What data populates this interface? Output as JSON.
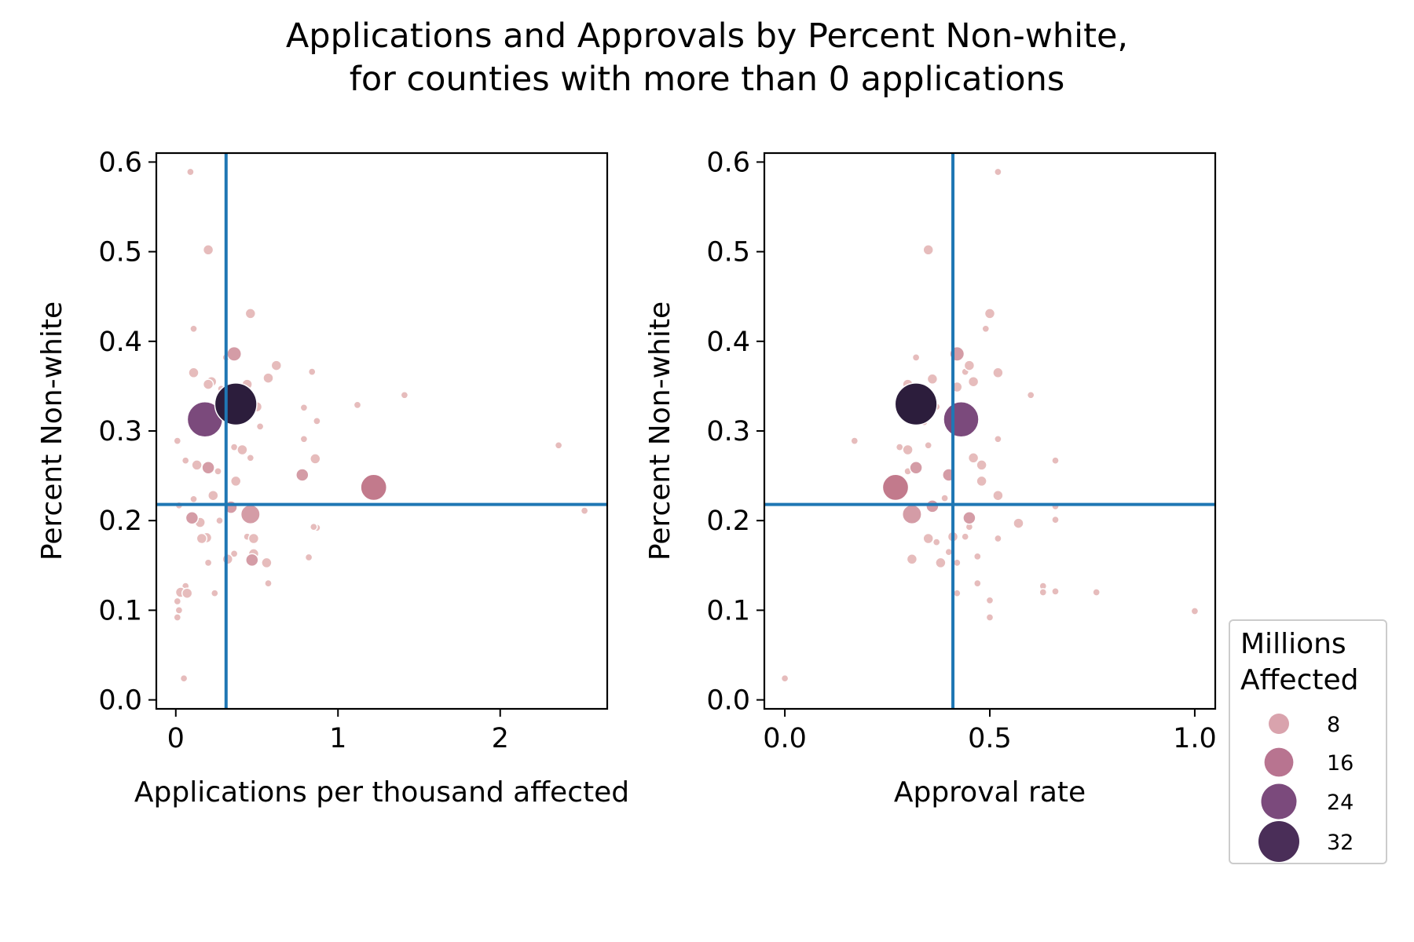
{
  "figure": {
    "title_line1": "Applications and Approvals by Percent Non-white,",
    "title_line2": "for counties with more than 0 applications"
  },
  "legend": {
    "title_line1": "Millions",
    "title_line2": "Affected",
    "entries": [
      {
        "label": "8",
        "size": 8,
        "color": "#d9a3ad"
      },
      {
        "label": "16",
        "size": 16,
        "color": "#b87490"
      },
      {
        "label": "24",
        "size": 24,
        "color": "#7b4a7c"
      },
      {
        "label": "32",
        "size": 32,
        "color": "#4a2e58"
      }
    ],
    "placement": "lower-right, outside axes"
  },
  "colors": {
    "reference_line": "#1f77b4",
    "axes": "#000000"
  },
  "chart_data": [
    {
      "type": "scatter",
      "title": "",
      "xlabel": "Applications per thousand affected",
      "ylabel": "Percent Non-white",
      "xlim": [
        -0.12,
        2.66
      ],
      "ylim": [
        -0.01,
        0.61
      ],
      "xticks": [
        0,
        1,
        2
      ],
      "xtick_labels": [
        "0",
        "1",
        "2"
      ],
      "yticks": [
        0.0,
        0.1,
        0.2,
        0.3,
        0.4,
        0.5,
        0.6
      ],
      "ytick_labels": [
        "0.0",
        "0.1",
        "0.2",
        "0.3",
        "0.4",
        "0.5",
        "0.6"
      ],
      "grid": false,
      "reference_lines": {
        "vertical_x": 0.31,
        "horizontal_y": 0.218
      },
      "point_fields": [
        "x",
        "y",
        "millions_affected"
      ],
      "points": [
        [
          0.09,
          0.589,
          1
        ],
        [
          0.2,
          0.502,
          2
        ],
        [
          0.46,
          0.431,
          2
        ],
        [
          0.11,
          0.414,
          1
        ],
        [
          0.36,
          0.386,
          4
        ],
        [
          0.31,
          0.382,
          1
        ],
        [
          0.62,
          0.373,
          2
        ],
        [
          0.11,
          0.365,
          2
        ],
        [
          0.84,
          0.366,
          1
        ],
        [
          0.57,
          0.359,
          2
        ],
        [
          0.22,
          0.355,
          2
        ],
        [
          0.2,
          0.352,
          2
        ],
        [
          0.44,
          0.352,
          2
        ],
        [
          0.28,
          0.347,
          1
        ],
        [
          1.41,
          0.34,
          1
        ],
        [
          0.37,
          0.33,
          34
        ],
        [
          0.18,
          0.313,
          24
        ],
        [
          0.5,
          0.327,
          2
        ],
        [
          0.79,
          0.326,
          1
        ],
        [
          1.12,
          0.329,
          1
        ],
        [
          0.87,
          0.311,
          1
        ],
        [
          0.52,
          0.305,
          1
        ],
        [
          0.79,
          0.291,
          1
        ],
        [
          0.01,
          0.289,
          1
        ],
        [
          2.36,
          0.284,
          1
        ],
        [
          0.36,
          0.282,
          1
        ],
        [
          0.41,
          0.279,
          2
        ],
        [
          0.86,
          0.269,
          2
        ],
        [
          0.46,
          0.27,
          1
        ],
        [
          0.06,
          0.267,
          1
        ],
        [
          0.13,
          0.262,
          2
        ],
        [
          0.2,
          0.259,
          3
        ],
        [
          0.78,
          0.251,
          3
        ],
        [
          0.26,
          0.255,
          1
        ],
        [
          0.37,
          0.244,
          2
        ],
        [
          1.22,
          0.237,
          13
        ],
        [
          0.11,
          0.224,
          1
        ],
        [
          0.23,
          0.228,
          2
        ],
        [
          0.34,
          0.215,
          3
        ],
        [
          0.02,
          0.217,
          1
        ],
        [
          2.52,
          0.211,
          1
        ],
        [
          0.46,
          0.207,
          7
        ],
        [
          0.15,
          0.198,
          2
        ],
        [
          0.1,
          0.203,
          3
        ],
        [
          0.27,
          0.2,
          1
        ],
        [
          0.87,
          0.192,
          1
        ],
        [
          0.85,
          0.193,
          1
        ],
        [
          0.19,
          0.181,
          2
        ],
        [
          0.16,
          0.18,
          2
        ],
        [
          0.48,
          0.18,
          2
        ],
        [
          0.44,
          0.182,
          1
        ],
        [
          0.48,
          0.163,
          2
        ],
        [
          0.36,
          0.163,
          1
        ],
        [
          0.32,
          0.157,
          2
        ],
        [
          0.56,
          0.153,
          2
        ],
        [
          0.47,
          0.156,
          3
        ],
        [
          0.2,
          0.153,
          1
        ],
        [
          0.82,
          0.159,
          1
        ],
        [
          0.57,
          0.13,
          1
        ],
        [
          0.06,
          0.127,
          1
        ],
        [
          0.03,
          0.12,
          2
        ],
        [
          0.07,
          0.119,
          2
        ],
        [
          0.24,
          0.119,
          1
        ],
        [
          0.01,
          0.11,
          1
        ],
        [
          0.02,
          0.1,
          1
        ],
        [
          0.01,
          0.092,
          1
        ],
        [
          0.05,
          0.024,
          1
        ]
      ]
    },
    {
      "type": "scatter",
      "title": "",
      "xlabel": "Approval rate",
      "ylabel": "Percent Non-white",
      "xlim": [
        -0.05,
        1.05
      ],
      "ylim": [
        -0.01,
        0.61
      ],
      "xticks": [
        0.0,
        0.5,
        1.0
      ],
      "xtick_labels": [
        "0.0",
        "0.5",
        "1.0"
      ],
      "yticks": [
        0.0,
        0.1,
        0.2,
        0.3,
        0.4,
        0.5,
        0.6
      ],
      "ytick_labels": [
        "0.0",
        "0.1",
        "0.2",
        "0.3",
        "0.4",
        "0.5",
        "0.6"
      ],
      "grid": false,
      "reference_lines": {
        "vertical_x": 0.41,
        "horizontal_y": 0.218
      },
      "point_fields": [
        "x",
        "y",
        "millions_affected"
      ],
      "points": [
        [
          0.52,
          0.589,
          1
        ],
        [
          0.35,
          0.502,
          2
        ],
        [
          0.5,
          0.431,
          2
        ],
        [
          0.49,
          0.414,
          1
        ],
        [
          0.42,
          0.386,
          4
        ],
        [
          0.32,
          0.382,
          1
        ],
        [
          0.45,
          0.373,
          2
        ],
        [
          0.52,
          0.365,
          2
        ],
        [
          0.44,
          0.366,
          1
        ],
        [
          0.46,
          0.355,
          2
        ],
        [
          0.36,
          0.358,
          2
        ],
        [
          0.3,
          0.352,
          2
        ],
        [
          0.42,
          0.349,
          2
        ],
        [
          0.6,
          0.34,
          1
        ],
        [
          0.32,
          0.33,
          34
        ],
        [
          0.43,
          0.313,
          24
        ],
        [
          0.41,
          0.325,
          2
        ],
        [
          0.37,
          0.327,
          1
        ],
        [
          0.34,
          0.31,
          1
        ],
        [
          0.52,
          0.291,
          1
        ],
        [
          0.17,
          0.289,
          1
        ],
        [
          0.35,
          0.284,
          1
        ],
        [
          0.3,
          0.279,
          2
        ],
        [
          0.66,
          0.267,
          1
        ],
        [
          0.28,
          0.282,
          1
        ],
        [
          0.46,
          0.27,
          2
        ],
        [
          0.48,
          0.262,
          2
        ],
        [
          0.32,
          0.259,
          3
        ],
        [
          0.4,
          0.251,
          3
        ],
        [
          0.48,
          0.244,
          2
        ],
        [
          0.27,
          0.237,
          13
        ],
        [
          0.3,
          0.255,
          1
        ],
        [
          0.52,
          0.228,
          2
        ],
        [
          0.36,
          0.216,
          3
        ],
        [
          0.66,
          0.216,
          1
        ],
        [
          0.39,
          0.225,
          1
        ],
        [
          0.31,
          0.207,
          7
        ],
        [
          0.45,
          0.203,
          3
        ],
        [
          0.57,
          0.197,
          2
        ],
        [
          0.66,
          0.201,
          1
        ],
        [
          0.45,
          0.193,
          1
        ],
        [
          0.44,
          0.182,
          1
        ],
        [
          0.41,
          0.182,
          2
        ],
        [
          0.35,
          0.18,
          2
        ],
        [
          0.37,
          0.176,
          1
        ],
        [
          0.52,
          0.18,
          1
        ],
        [
          0.4,
          0.165,
          1
        ],
        [
          0.31,
          0.157,
          2
        ],
        [
          0.38,
          0.153,
          2
        ],
        [
          0.47,
          0.16,
          1
        ],
        [
          0.42,
          0.153,
          1
        ],
        [
          0.63,
          0.127,
          1
        ],
        [
          0.63,
          0.12,
          1
        ],
        [
          0.66,
          0.121,
          1
        ],
        [
          0.76,
          0.12,
          1
        ],
        [
          0.47,
          0.13,
          1
        ],
        [
          0.42,
          0.119,
          1
        ],
        [
          0.5,
          0.111,
          1
        ],
        [
          1.0,
          0.099,
          1
        ],
        [
          0.5,
          0.092,
          1
        ],
        [
          0.0,
          0.024,
          1
        ]
      ]
    }
  ]
}
